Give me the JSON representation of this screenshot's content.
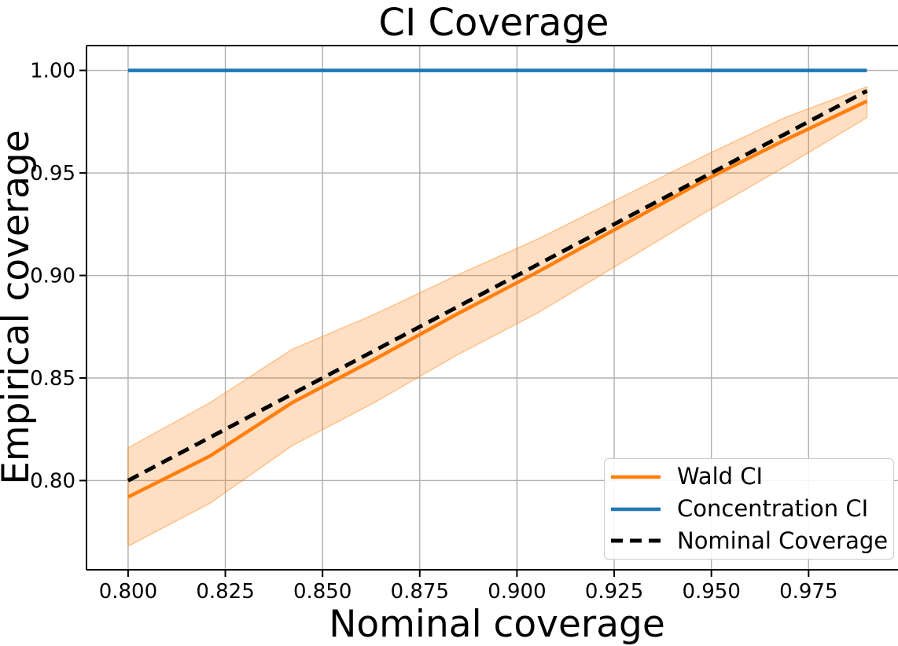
{
  "chart_data": {
    "type": "line",
    "title": "CI Coverage",
    "xlabel": "Nominal coverage",
    "ylabel": "Empirical coverage",
    "x": [
      0.8,
      0.8211,
      0.8422,
      0.8633,
      0.8844,
      0.9056,
      0.9267,
      0.9478,
      0.9689,
      0.99
    ],
    "series": [
      {
        "name": "Wald CI",
        "color": "#ff7f0e",
        "line_style": "solid",
        "values": [
          0.792,
          0.812,
          0.838,
          0.859,
          0.881,
          0.902,
          0.924,
          0.946,
          0.966,
          0.985
        ],
        "band_lower": [
          0.768,
          0.789,
          0.817,
          0.838,
          0.861,
          0.882,
          0.906,
          0.93,
          0.953,
          0.977
        ],
        "band_upper": [
          0.816,
          0.838,
          0.864,
          0.881,
          0.9,
          0.918,
          0.938,
          0.958,
          0.977,
          0.992
        ],
        "band_opacity": 0.25
      },
      {
        "name": "Concentration CI",
        "color": "#1f77b4",
        "line_style": "solid",
        "values": [
          1.0,
          1.0,
          1.0,
          1.0,
          1.0,
          1.0,
          1.0,
          1.0,
          1.0,
          1.0
        ]
      },
      {
        "name": "Nominal Coverage",
        "color": "#000000",
        "line_style": "dashed",
        "values": [
          0.8,
          0.8211,
          0.8422,
          0.8633,
          0.8844,
          0.9056,
          0.9267,
          0.9478,
          0.9689,
          0.99
        ]
      }
    ],
    "xlim": [
      0.7893,
      0.9988
    ],
    "ylim": [
      0.7565,
      1.0121
    ],
    "xticks": [
      0.8,
      0.825,
      0.85,
      0.875,
      0.9,
      0.925,
      0.95,
      0.975
    ],
    "xtick_labels": [
      "0.800",
      "0.825",
      "0.850",
      "0.875",
      "0.900",
      "0.925",
      "0.950",
      "0.975"
    ],
    "yticks": [
      0.8,
      0.85,
      0.9,
      0.95,
      1.0
    ],
    "ytick_labels": [
      "0.80",
      "0.85",
      "0.90",
      "0.95",
      "1.00"
    ],
    "grid": true,
    "grid_color": "#b0b0b0",
    "spine_color": "#000000",
    "legend_position": "lower right"
  }
}
